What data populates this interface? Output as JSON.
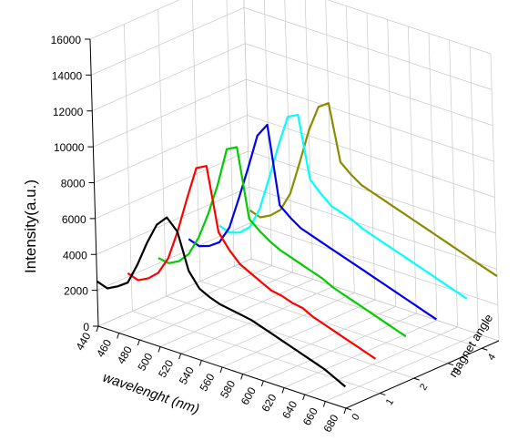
{
  "chart_data": {
    "type": "line",
    "projection": "3d-waterfall",
    "xlabel": "wavelenght (nm)",
    "ylabel": "Intensity(a.u.)",
    "zlabel": "magnet angle",
    "x_ticks": [
      "440",
      "460",
      "480",
      "500",
      "520",
      "540",
      "560",
      "580",
      "600",
      "620",
      "640",
      "660",
      "680"
    ],
    "y_ticks": [
      "0",
      "2000",
      "4000",
      "6000",
      "8000",
      "10000",
      "12000",
      "14000",
      "16000"
    ],
    "z_ticks": [
      "0",
      "1",
      "2",
      "3",
      "4"
    ],
    "xlim": [
      440,
      680
    ],
    "ylim": [
      0,
      16000
    ],
    "zlim": [
      0,
      4.5
    ],
    "grid": true,
    "x": [
      440,
      450,
      460,
      470,
      480,
      490,
      500,
      510,
      520,
      530,
      540,
      550,
      560,
      570,
      580,
      590,
      600,
      610,
      620,
      630,
      640,
      650,
      660,
      670,
      680
    ],
    "series": [
      {
        "color": "#000000",
        "z": 0,
        "values": [
          2500,
          2300,
          2600,
          3000,
          4200,
          5600,
          6800,
          7400,
          6800,
          4800,
          4000,
          3700,
          3500,
          3400,
          3300,
          3200,
          3000,
          2800,
          2600,
          2400,
          2200,
          2000,
          1800,
          1500,
          1200
        ]
      },
      {
        "color": "#ff0000",
        "z": 0.9,
        "values": [
          2200,
          2000,
          2300,
          2800,
          3800,
          5500,
          7500,
          9400,
          9700,
          6200,
          5400,
          4800,
          4500,
          4200,
          3900,
          3800,
          3600,
          3500,
          3200,
          3000,
          2800,
          2600,
          2400,
          2200,
          2000
        ]
      },
      {
        "color": "#00cc00",
        "z": 1.8,
        "values": [
          2300,
          2200,
          2500,
          3100,
          4200,
          5700,
          7500,
          9700,
          10000,
          6200,
          5700,
          5300,
          5000,
          4800,
          4600,
          4400,
          4200,
          3900,
          3700,
          3500,
          3300,
          3100,
          2900,
          2700,
          2500
        ]
      },
      {
        "color": "#0000ee",
        "z": 2.7,
        "values": [
          2600,
          2400,
          2600,
          3000,
          4000,
          5800,
          7700,
          9700,
          10500,
          6200,
          5700,
          5300,
          5100,
          4900,
          4700,
          4500,
          4300,
          4100,
          3900,
          3700,
          3500,
          3300,
          3100,
          2900,
          2700
        ]
      },
      {
        "color": "#00ffff",
        "z": 3.6,
        "values": [
          2600,
          2400,
          2600,
          3100,
          4300,
          6200,
          8200,
          10000,
          10300,
          6900,
          6300,
          5800,
          5600,
          5400,
          5100,
          4900,
          4700,
          4500,
          4300,
          4100,
          3900,
          3700,
          3500,
          3300,
          3100
        ]
      },
      {
        "color": "#8b8b00",
        "z": 4.5,
        "values": [
          2700,
          2500,
          2800,
          3300,
          4400,
          6300,
          8300,
          9800,
          10200,
          7100,
          6600,
          6200,
          6000,
          5800,
          5600,
          5400,
          5200,
          5000,
          4800,
          4600,
          4400,
          4200,
          4000,
          3800,
          3600
        ]
      }
    ]
  }
}
